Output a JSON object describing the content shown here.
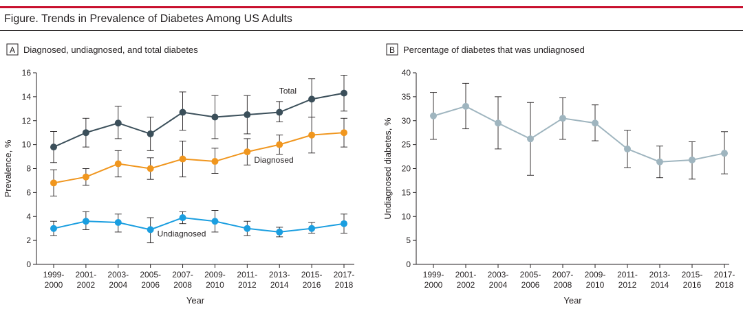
{
  "figure": {
    "title": "Figure. Trends in Prevalence of Diabetes Among US Adults"
  },
  "colors": {
    "accent_bar": "#c8102e",
    "total": "#3b4f5a",
    "diagnosed": "#f0961e",
    "undiagnosed": "#1a9ee0",
    "pct_undiagnosed": "#9fb5bf",
    "axis": "#231f20",
    "error_bar": "#231f20"
  },
  "chart_data": [
    {
      "panel_letter": "A",
      "title": "Diagnosed, undiagnosed, and total diabetes",
      "type": "line",
      "xlabel": "Year",
      "ylabel": "Prevalence, %",
      "ylim": [
        0,
        16
      ],
      "yticks": [
        0,
        2,
        4,
        6,
        8,
        10,
        12,
        14,
        16
      ],
      "grid": false,
      "categories": [
        [
          "1999-",
          "2000"
        ],
        [
          "2001-",
          "2002"
        ],
        [
          "2003-",
          "2004"
        ],
        [
          "2005-",
          "2006"
        ],
        [
          "2007-",
          "2008"
        ],
        [
          "2009-",
          "2010"
        ],
        [
          "2011-",
          "2012"
        ],
        [
          "2013-",
          "2014"
        ],
        [
          "2015-",
          "2016"
        ],
        [
          "2017-",
          "2018"
        ]
      ],
      "series": [
        {
          "name": "Total",
          "color_key": "total",
          "values": [
            9.8,
            11.0,
            11.8,
            10.9,
            12.7,
            12.3,
            12.5,
            12.7,
            13.8,
            14.3
          ],
          "lower": [
            8.5,
            9.8,
            10.5,
            9.5,
            11.2,
            10.5,
            10.9,
            11.9,
            12.3,
            12.8
          ],
          "upper": [
            11.1,
            12.2,
            13.2,
            12.3,
            14.4,
            14.1,
            14.1,
            13.6,
            15.5,
            15.8
          ]
        },
        {
          "name": "Diagnosed",
          "color_key": "diagnosed",
          "values": [
            6.8,
            7.3,
            8.4,
            8.0,
            8.8,
            8.6,
            9.4,
            10.0,
            10.8,
            11.0
          ],
          "lower": [
            5.7,
            6.6,
            7.3,
            7.1,
            7.3,
            7.6,
            8.3,
            9.2,
            9.3,
            9.8
          ],
          "upper": [
            7.9,
            8.0,
            9.5,
            8.9,
            10.3,
            9.7,
            10.5,
            10.8,
            12.3,
            12.2
          ]
        },
        {
          "name": "Undiagnosed",
          "color_key": "undiagnosed",
          "values": [
            3.0,
            3.6,
            3.5,
            2.9,
            3.9,
            3.6,
            3.0,
            2.7,
            3.0,
            3.4
          ],
          "lower": [
            2.4,
            2.9,
            2.7,
            1.8,
            3.4,
            2.7,
            2.4,
            2.3,
            2.6,
            2.6
          ],
          "upper": [
            3.6,
            4.4,
            4.2,
            3.9,
            4.4,
            4.5,
            3.6,
            3.1,
            3.5,
            4.2
          ]
        }
      ]
    },
    {
      "panel_letter": "B",
      "title": "Percentage of diabetes that was undiagnosed",
      "type": "line",
      "xlabel": "Year",
      "ylabel": "Undiagnosed diabetes, %",
      "ylim": [
        0,
        40
      ],
      "yticks": [
        0,
        5,
        10,
        15,
        20,
        25,
        30,
        35,
        40
      ],
      "grid": false,
      "categories": [
        [
          "1999-",
          "2000"
        ],
        [
          "2001-",
          "2002"
        ],
        [
          "2003-",
          "2004"
        ],
        [
          "2005-",
          "2006"
        ],
        [
          "2007-",
          "2008"
        ],
        [
          "2009-",
          "2010"
        ],
        [
          "2011-",
          "2012"
        ],
        [
          "2013-",
          "2014"
        ],
        [
          "2015-",
          "2016"
        ],
        [
          "2017-",
          "2018"
        ]
      ],
      "series": [
        {
          "name": "",
          "color_key": "pct_undiagnosed",
          "values": [
            31.0,
            33.0,
            29.5,
            26.2,
            30.5,
            29.5,
            24.1,
            21.4,
            21.8,
            23.2
          ],
          "lower": [
            26.1,
            28.3,
            24.1,
            18.6,
            26.1,
            25.8,
            20.2,
            18.1,
            17.8,
            18.9
          ],
          "upper": [
            35.9,
            37.8,
            35.0,
            33.8,
            34.8,
            33.3,
            28.0,
            24.7,
            25.6,
            27.7
          ]
        }
      ]
    }
  ]
}
